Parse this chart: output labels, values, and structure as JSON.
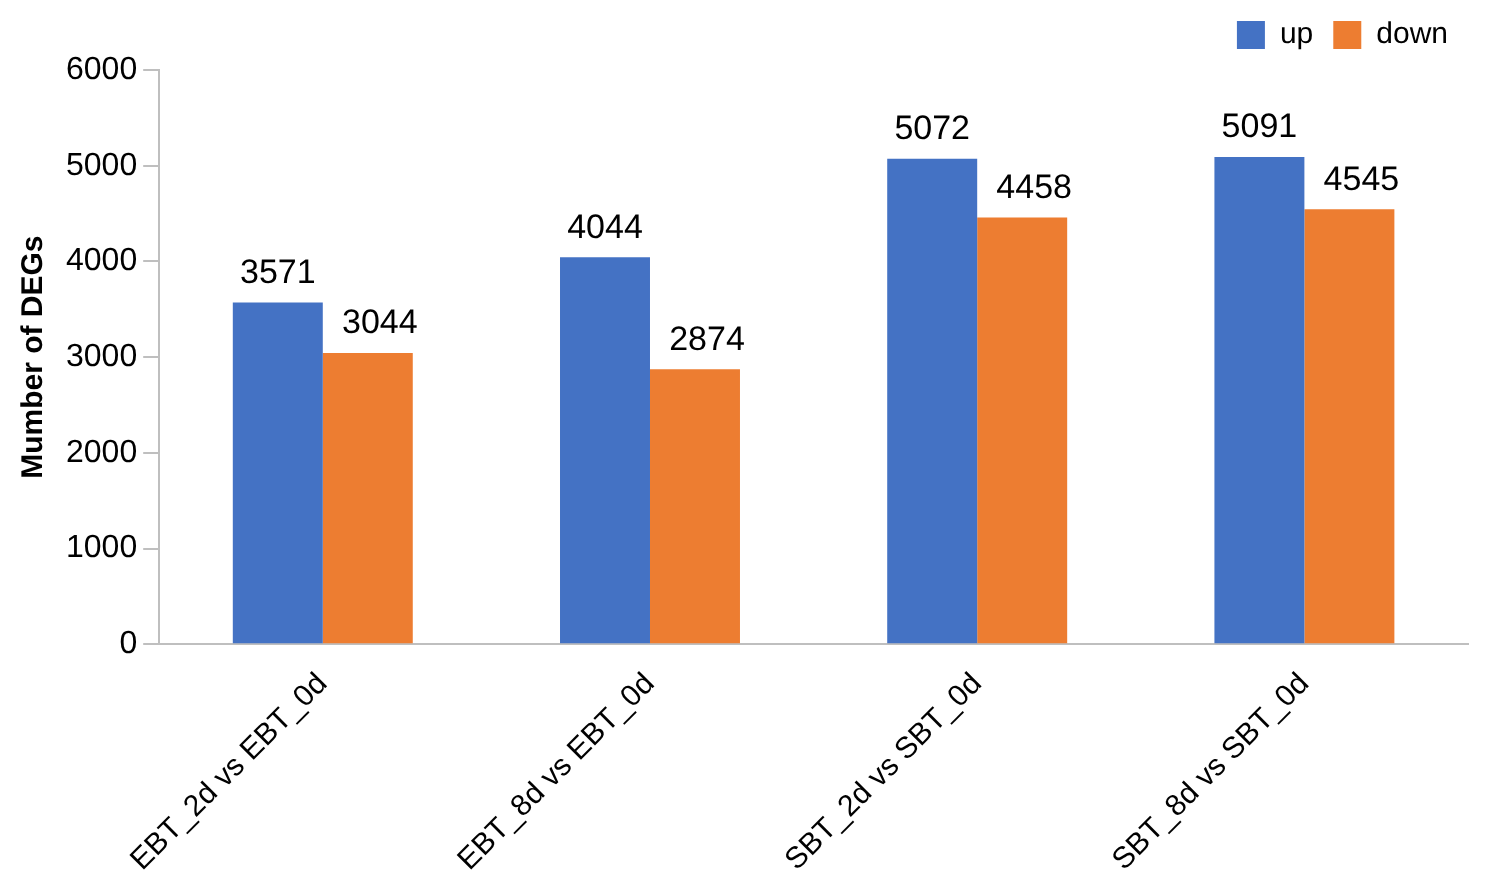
{
  "chart_data": {
    "type": "bar",
    "ylabel": "Mumber of DEGs",
    "categories": [
      "EBT_2d vs EBT_0d",
      "EBT_8d vs EBT_0d",
      "SBT_2d vs SBT_0d",
      "SBT_8d vs SBT_0d"
    ],
    "series": [
      {
        "name": "up",
        "color": "#4472c4",
        "values": [
          3571,
          4044,
          5072,
          5091
        ]
      },
      {
        "name": "down",
        "color": "#ed7d31",
        "values": [
          3044,
          2874,
          4458,
          4545
        ]
      }
    ],
    "ylim": [
      0,
      6000
    ],
    "yticks": [
      0,
      1000,
      2000,
      3000,
      4000,
      5000,
      6000
    ],
    "grid": false,
    "legend": "top right",
    "data_labels": true
  }
}
